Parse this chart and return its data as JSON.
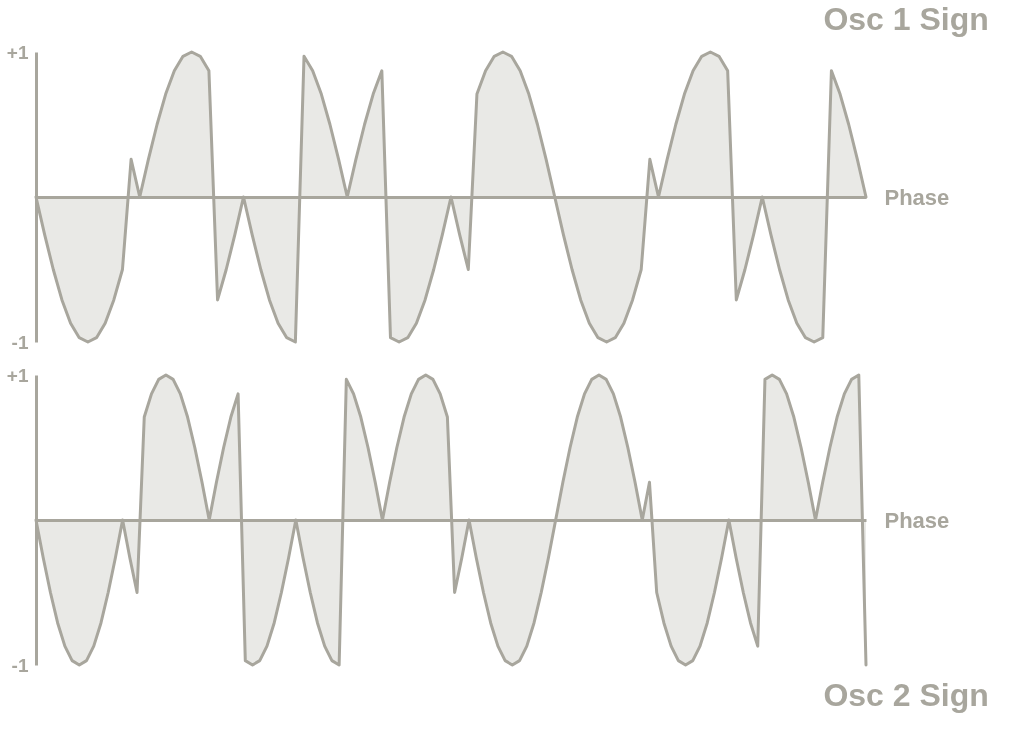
{
  "chart_data": [
    {
      "type": "area",
      "title": "Osc 1 Sign",
      "xlabel": "Phase",
      "categories": [
        null,
        null,
        null,
        null,
        null,
        null,
        null,
        null,
        null,
        null,
        null,
        null,
        null,
        null,
        null,
        null,
        null,
        null,
        null,
        null,
        null,
        null,
        null,
        null,
        null,
        null,
        null,
        null,
        null,
        null,
        null,
        null,
        null,
        null,
        null,
        null,
        null,
        null,
        null,
        null,
        null,
        null,
        null,
        null,
        null,
        null,
        null,
        null,
        null,
        null,
        null,
        null,
        null,
        null,
        null,
        null,
        null,
        null,
        null,
        null,
        null,
        null,
        null,
        null,
        null,
        null,
        null,
        null,
        null,
        null,
        null,
        null,
        null,
        null,
        null,
        null,
        null,
        null,
        null,
        null,
        null,
        null,
        null,
        null,
        null,
        null,
        null,
        null,
        null,
        null,
        null,
        null,
        null,
        null,
        null,
        null,
        null
      ],
      "series": [
        {
          "color": "#a8a69d",
          "values": [
            0,
            -0.26,
            -0.5,
            -0.71,
            -0.87,
            -0.97,
            -1,
            -0.97,
            -0.87,
            -0.71,
            -0.5,
            0.26,
            0,
            0.26,
            0.5,
            0.71,
            0.87,
            0.97,
            1,
            0.97,
            0.87,
            -0.71,
            -0.5,
            -0.26,
            0,
            -0.26,
            -0.5,
            -0.71,
            -0.87,
            -0.97,
            -1,
            0.97,
            0.87,
            0.71,
            0.5,
            0.26,
            0,
            0.26,
            0.5,
            0.71,
            0.87,
            -0.97,
            -1,
            -0.97,
            -0.87,
            -0.71,
            -0.5,
            -0.26,
            0,
            -0.26,
            -0.5,
            0.71,
            0.87,
            0.97,
            1,
            0.97,
            0.87,
            0.71,
            0.5,
            0.26,
            0,
            -0.26,
            -0.5,
            -0.71,
            -0.87,
            -0.97,
            -1,
            -0.97,
            -0.87,
            -0.71,
            -0.5,
            0.26,
            0,
            0.26,
            0.5,
            0.71,
            0.87,
            0.97,
            1,
            0.97,
            0.87,
            -0.71,
            -0.5,
            -0.26,
            0,
            -0.26,
            -0.5,
            -0.71,
            -0.87,
            -0.97,
            -1,
            -0.97,
            0.87,
            0.71,
            0.5,
            0.26,
            0
          ]
        }
      ],
      "ylim": [
        -1,
        1
      ],
      "yticks": [
        {
          "value": 1,
          "label": "+1"
        },
        -1
      ],
      "grid": false,
      "tick_labels": "y"
    },
    {
      "type": "area",
      "title": "Osc 2 Sign",
      "xlabel": "Phase",
      "categories": [
        null,
        null,
        null,
        null,
        null,
        null,
        null,
        null,
        null,
        null,
        null,
        null,
        null,
        null,
        null,
        null,
        null,
        null,
        null,
        null,
        null,
        null,
        null,
        null,
        null,
        null,
        null,
        null,
        null,
        null,
        null,
        null,
        null,
        null,
        null,
        null,
        null,
        null,
        null,
        null,
        null,
        null,
        null,
        null,
        null,
        null,
        null,
        null,
        null,
        null,
        null,
        null,
        null,
        null,
        null,
        null,
        null,
        null,
        null,
        null,
        null,
        null,
        null,
        null,
        null,
        null,
        null,
        null,
        null,
        null,
        null,
        null,
        null,
        null,
        null,
        null,
        null,
        null,
        null,
        null,
        null,
        null,
        null,
        null,
        null,
        null,
        null,
        null,
        null,
        null,
        null,
        null,
        null,
        null,
        null,
        null,
        null,
        null,
        null,
        null,
        null,
        null,
        null,
        null,
        null,
        null,
        null,
        null,
        null,
        null,
        null,
        null,
        null,
        null,
        null,
        null
      ],
      "series": [
        {
          "color": "#a8a69d",
          "values": [
            0,
            -0.26,
            -0.5,
            -0.71,
            -0.87,
            -0.97,
            -1,
            -0.97,
            -0.87,
            -0.71,
            -0.5,
            -0.26,
            0,
            -0.26,
            -0.5,
            0.71,
            0.87,
            0.97,
            1,
            0.97,
            0.87,
            0.71,
            0.5,
            0.26,
            0,
            0.26,
            0.5,
            0.71,
            0.87,
            -0.97,
            -1,
            -0.97,
            -0.87,
            -0.71,
            -0.5,
            -0.26,
            0,
            -0.26,
            -0.5,
            -0.71,
            -0.87,
            -0.97,
            -1,
            0.97,
            0.87,
            0.71,
            0.5,
            0.26,
            0,
            0.26,
            0.5,
            0.71,
            0.87,
            0.97,
            1,
            0.97,
            0.87,
            0.71,
            -0.5,
            -0.26,
            0,
            -0.26,
            -0.5,
            -0.71,
            -0.87,
            -0.97,
            -1,
            -0.97,
            -0.87,
            -0.71,
            -0.5,
            -0.26,
            0,
            0.26,
            0.5,
            0.71,
            0.87,
            0.97,
            1,
            0.97,
            0.87,
            0.71,
            0.5,
            0.26,
            0,
            0.26,
            -0.5,
            -0.71,
            -0.87,
            -0.97,
            -1,
            -0.97,
            -0.87,
            -0.71,
            -0.5,
            -0.26,
            0,
            -0.26,
            -0.5,
            -0.71,
            -0.87,
            0.97,
            1,
            0.97,
            0.87,
            0.71,
            0.5,
            0.26,
            0,
            0.26,
            0.5,
            0.71,
            0.87,
            0.97,
            1,
            -1
          ]
        }
      ],
      "ylim": [
        -1,
        1
      ],
      "yticks": [
        {
          "value": 1,
          "label": "+1"
        },
        -1
      ],
      "grid": false,
      "tick_labels": "y"
    }
  ]
}
